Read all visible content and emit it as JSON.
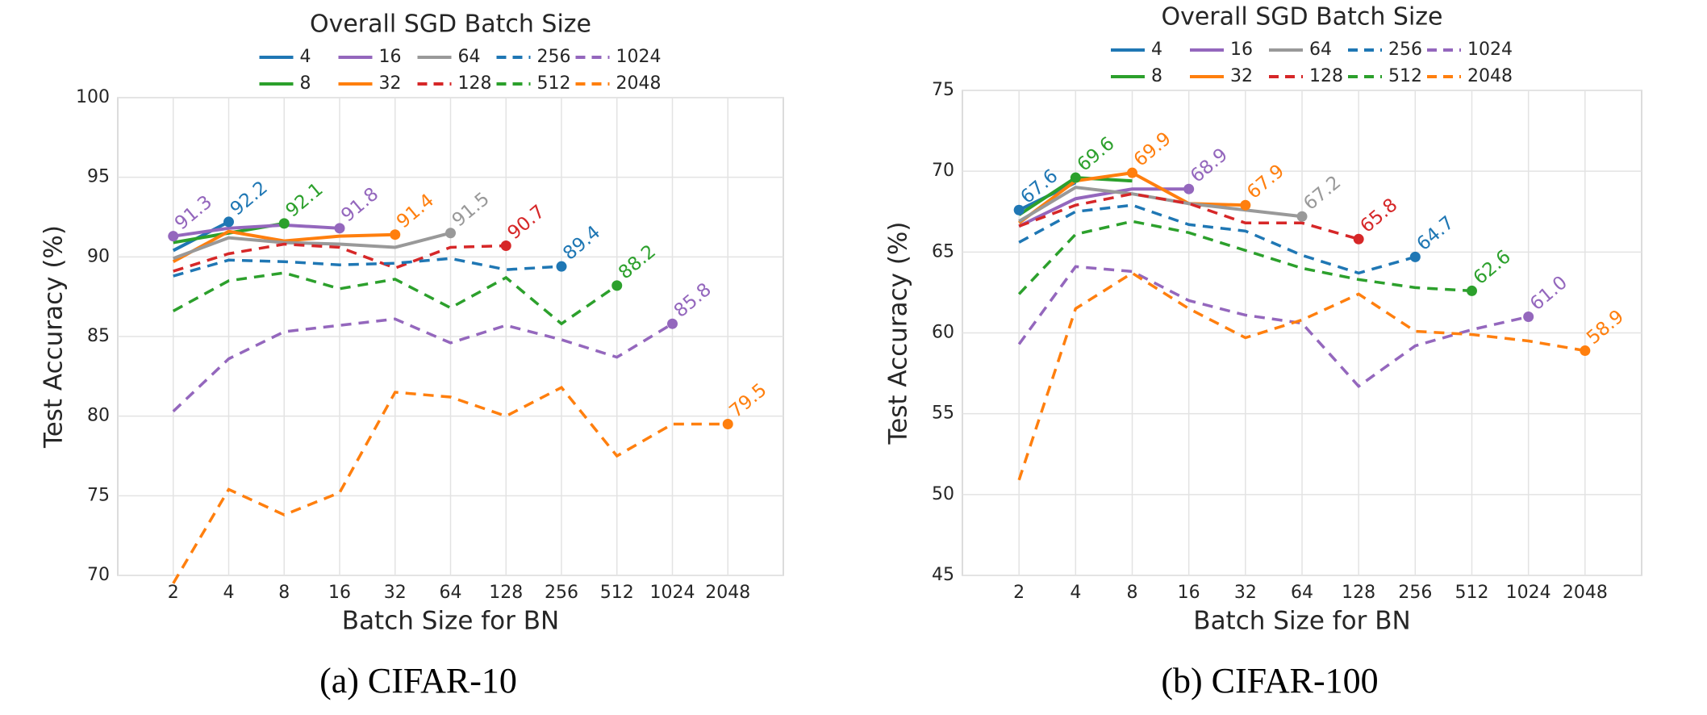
{
  "chart_data": [
    {
      "type": "line",
      "legend_title": "Overall SGD Batch Size",
      "xlabel": "Batch Size for BN",
      "ylabel": "Test Accuracy (%)",
      "caption": "(a) CIFAR-10",
      "categories": [
        "2",
        "4",
        "8",
        "16",
        "32",
        "64",
        "128",
        "256",
        "512",
        "1024",
        "2048"
      ],
      "ylim": [
        70,
        100
      ],
      "yticks": [
        70,
        75,
        80,
        85,
        90,
        95,
        100
      ],
      "grid": true,
      "series": [
        {
          "name": "4",
          "color": "#1f77b4",
          "dashed": false,
          "values": [
            90.4,
            92.2,
            null,
            null,
            null,
            null,
            null,
            null,
            null,
            null,
            null
          ],
          "value_labels": [
            null,
            "92.2",
            null,
            null,
            null,
            null,
            null,
            null,
            null,
            null,
            null
          ]
        },
        {
          "name": "8",
          "color": "#2ca02c",
          "dashed": false,
          "values": [
            90.9,
            91.5,
            92.1,
            null,
            null,
            null,
            null,
            null,
            null,
            null,
            null
          ],
          "value_labels": [
            null,
            null,
            "92.1",
            null,
            null,
            null,
            null,
            null,
            null,
            null,
            null
          ]
        },
        {
          "name": "16",
          "color": "#9467bd",
          "dashed": false,
          "values": [
            91.3,
            91.8,
            92.0,
            91.8,
            null,
            null,
            null,
            null,
            null,
            null,
            null
          ],
          "value_labels": [
            "91.3",
            null,
            null,
            "91.8",
            null,
            null,
            null,
            null,
            null,
            null,
            null
          ]
        },
        {
          "name": "32",
          "color": "#ff7f0e",
          "dashed": false,
          "values": [
            89.7,
            91.6,
            91.0,
            91.3,
            91.4,
            null,
            null,
            null,
            null,
            null,
            null
          ],
          "value_labels": [
            null,
            null,
            null,
            null,
            "91.4",
            null,
            null,
            null,
            null,
            null,
            null
          ]
        },
        {
          "name": "64",
          "color": "#999999",
          "dashed": false,
          "values": [
            89.9,
            91.2,
            90.9,
            90.8,
            90.6,
            91.5,
            null,
            null,
            null,
            null,
            null
          ],
          "value_labels": [
            null,
            null,
            null,
            null,
            null,
            "91.5",
            null,
            null,
            null,
            null,
            null
          ]
        },
        {
          "name": "128",
          "color": "#d62728",
          "dashed": true,
          "values": [
            89.1,
            90.2,
            90.8,
            90.6,
            89.3,
            90.6,
            90.7,
            null,
            null,
            null,
            null
          ],
          "value_labels": [
            null,
            null,
            null,
            null,
            null,
            null,
            "90.7",
            null,
            null,
            null,
            null
          ]
        },
        {
          "name": "256",
          "color": "#1f77b4",
          "dashed": true,
          "values": [
            88.8,
            89.8,
            89.7,
            89.5,
            89.6,
            89.9,
            89.2,
            89.4,
            null,
            null,
            null
          ],
          "value_labels": [
            null,
            null,
            null,
            null,
            null,
            null,
            null,
            "89.4",
            null,
            null,
            null
          ]
        },
        {
          "name": "512",
          "color": "#2ca02c",
          "dashed": true,
          "values": [
            86.6,
            88.5,
            89.0,
            88.0,
            88.6,
            86.8,
            88.7,
            85.8,
            88.2,
            null,
            null
          ],
          "value_labels": [
            null,
            null,
            null,
            null,
            null,
            null,
            null,
            null,
            "88.2",
            null,
            null
          ]
        },
        {
          "name": "1024",
          "color": "#9467bd",
          "dashed": true,
          "values": [
            80.3,
            83.6,
            85.3,
            85.7,
            86.1,
            84.6,
            85.7,
            84.8,
            83.7,
            85.8,
            null
          ],
          "value_labels": [
            null,
            null,
            null,
            null,
            null,
            null,
            null,
            null,
            null,
            "85.8",
            null
          ]
        },
        {
          "name": "2048",
          "color": "#ff7f0e",
          "dashed": true,
          "values": [
            69.5,
            75.4,
            73.8,
            75.2,
            81.5,
            81.2,
            80.0,
            81.8,
            77.5,
            79.5,
            79.5
          ],
          "value_labels": [
            null,
            null,
            null,
            null,
            null,
            null,
            null,
            null,
            null,
            null,
            "79.5"
          ]
        }
      ]
    },
    {
      "type": "line",
      "legend_title": "Overall SGD Batch Size",
      "xlabel": "Batch Size for BN",
      "ylabel": "Test Accuracy (%)",
      "caption": "(b) CIFAR-100",
      "categories": [
        "2",
        "4",
        "8",
        "16",
        "32",
        "64",
        "128",
        "256",
        "512",
        "1024",
        "2048"
      ],
      "ylim": [
        45,
        75
      ],
      "yticks": [
        45,
        50,
        55,
        60,
        65,
        70,
        75
      ],
      "grid": true,
      "series": [
        {
          "name": "4",
          "color": "#1f77b4",
          "dashed": false,
          "values": [
            67.6,
            69.3,
            null,
            null,
            null,
            null,
            null,
            null,
            null,
            null,
            null
          ],
          "value_labels": [
            "67.6",
            null,
            null,
            null,
            null,
            null,
            null,
            null,
            null,
            null,
            null
          ]
        },
        {
          "name": "8",
          "color": "#2ca02c",
          "dashed": false,
          "values": [
            67.3,
            69.6,
            69.4,
            null,
            null,
            null,
            null,
            null,
            null,
            null,
            null
          ],
          "value_labels": [
            null,
            "69.6",
            null,
            null,
            null,
            null,
            null,
            null,
            null,
            null,
            null
          ]
        },
        {
          "name": "16",
          "color": "#9467bd",
          "dashed": false,
          "values": [
            66.6,
            68.3,
            68.9,
            68.9,
            null,
            null,
            null,
            null,
            null,
            null,
            null
          ],
          "value_labels": [
            null,
            null,
            null,
            "68.9",
            null,
            null,
            null,
            null,
            null,
            null,
            null
          ]
        },
        {
          "name": "32",
          "color": "#ff7f0e",
          "dashed": false,
          "values": [
            66.8,
            69.4,
            69.9,
            68.0,
            67.9,
            null,
            null,
            null,
            null,
            null,
            null
          ],
          "value_labels": [
            null,
            null,
            "69.9",
            null,
            "67.9",
            null,
            null,
            null,
            null,
            null,
            null
          ]
        },
        {
          "name": "64",
          "color": "#999999",
          "dashed": false,
          "values": [
            66.9,
            69.0,
            68.6,
            68.0,
            67.6,
            67.2,
            null,
            null,
            null,
            null,
            null
          ],
          "value_labels": [
            null,
            null,
            null,
            null,
            null,
            "67.2",
            null,
            null,
            null,
            null,
            null
          ]
        },
        {
          "name": "128",
          "color": "#d62728",
          "dashed": true,
          "values": [
            66.6,
            67.9,
            68.6,
            68.0,
            66.8,
            66.8,
            65.8,
            null,
            null,
            null,
            null
          ],
          "value_labels": [
            null,
            null,
            null,
            null,
            null,
            null,
            "65.8",
            null,
            null,
            null,
            null
          ]
        },
        {
          "name": "256",
          "color": "#1f77b4",
          "dashed": true,
          "values": [
            65.6,
            67.5,
            67.9,
            66.7,
            66.3,
            64.8,
            63.7,
            64.7,
            null,
            null,
            null
          ],
          "value_labels": [
            null,
            null,
            null,
            null,
            null,
            null,
            null,
            "64.7",
            null,
            null,
            null
          ]
        },
        {
          "name": "512",
          "color": "#2ca02c",
          "dashed": true,
          "values": [
            62.4,
            66.1,
            66.9,
            66.2,
            65.1,
            64.0,
            63.3,
            62.8,
            62.6,
            null,
            null
          ],
          "value_labels": [
            null,
            null,
            null,
            null,
            null,
            null,
            null,
            null,
            "62.6",
            null,
            null
          ]
        },
        {
          "name": "1024",
          "color": "#9467bd",
          "dashed": true,
          "values": [
            59.3,
            64.1,
            63.8,
            62.0,
            61.1,
            60.6,
            56.7,
            59.2,
            60.2,
            61.0,
            null
          ],
          "value_labels": [
            null,
            null,
            null,
            null,
            null,
            null,
            null,
            null,
            null,
            "61.0",
            null
          ]
        },
        {
          "name": "2048",
          "color": "#ff7f0e",
          "dashed": true,
          "values": [
            50.9,
            61.5,
            63.7,
            61.5,
            59.7,
            60.8,
            62.4,
            60.1,
            59.9,
            59.5,
            58.9
          ],
          "value_labels": [
            null,
            null,
            null,
            null,
            null,
            null,
            null,
            null,
            null,
            null,
            "58.9"
          ]
        }
      ]
    }
  ]
}
